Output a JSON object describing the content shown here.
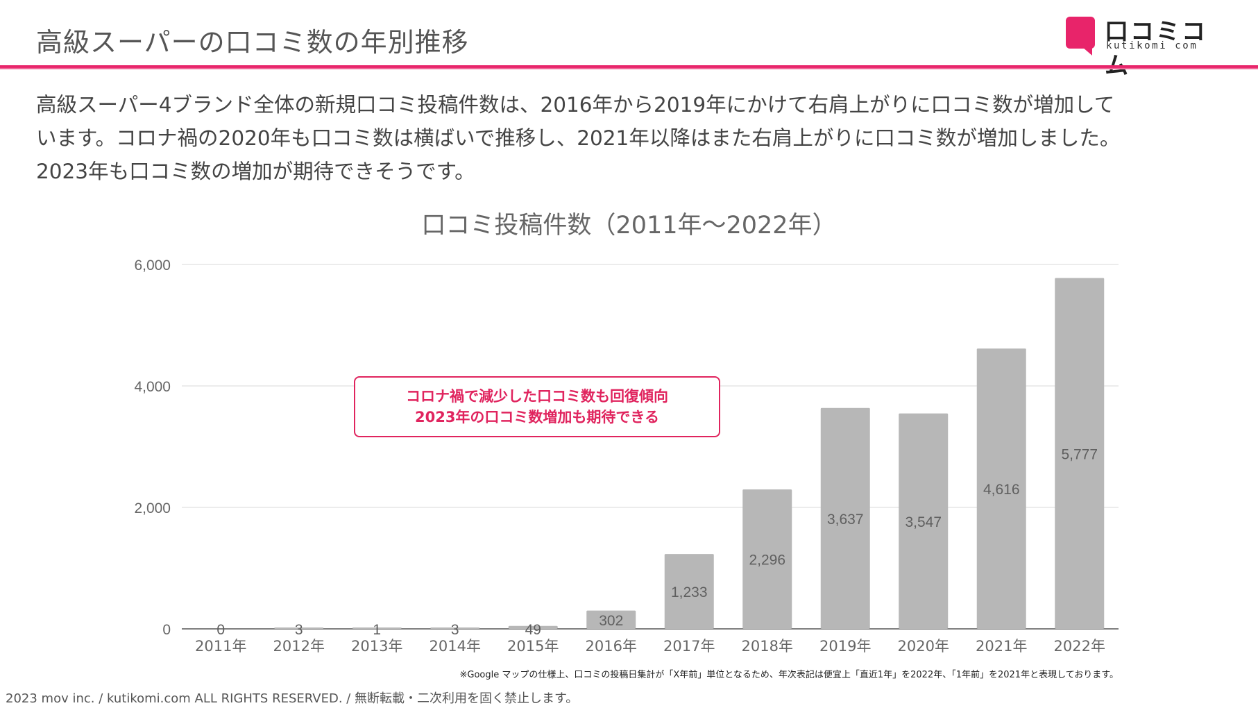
{
  "slide": {
    "title": "高級スーパーの口コミ数の年別推移",
    "body_lines": [
      "高級スーパー4ブランド全体の新規口コミ投稿件数は、2016年から2019年にかけて右肩上がりに口コミ数が増加して",
      "います。コロナ禍の2020年も口コミ数は横ばいで推移し、2021年以降はまた右肩上がりに口コミ数が増加しました。",
      "2023年も口コミ数の増加が期待できそうです。"
    ]
  },
  "logo": {
    "jp": "口コミコム",
    "en": "kutikomi com"
  },
  "callout": {
    "line1": "コロナ禍で減少した口コミ数も回復傾向",
    "line2": "2023年の口コミ数増加も期待できる"
  },
  "note": "※Google マップの仕様上、口コミの投稿日集計が「X年前」単位となるため、年次表記は便宜上「直近1年」を2022年、「1年前」を2021年と表現しております。",
  "copyright": "2023 mov inc. / kutikomi.com ALL RIGHTS RESERVED. / 無断転載・二次利用を固く禁止します。",
  "colors": {
    "accent": "#e8246a",
    "bar": "#b7b7b7",
    "grid": "#d9d9d9",
    "label": "#666666"
  },
  "chart_data": {
    "type": "bar",
    "title": "口コミ投稿件数（2011年～2022年）",
    "categories": [
      "2011年",
      "2012年",
      "2013年",
      "2014年",
      "2015年",
      "2016年",
      "2017年",
      "2018年",
      "2019年",
      "2020年",
      "2021年",
      "2022年"
    ],
    "values": [
      0,
      3,
      1,
      3,
      49,
      302,
      1233,
      2296,
      3637,
      3547,
      4616,
      5777
    ],
    "data_labels": [
      "0",
      "3",
      "1",
      "3",
      "49",
      "302",
      "1,233",
      "2,296",
      "3,637",
      "3,547",
      "4,616",
      "5,777"
    ],
    "yticks": [
      0,
      2000,
      4000,
      6000
    ],
    "ytick_labels": [
      "0",
      "2,000",
      "4,000",
      "6,000"
    ],
    "ylim": [
      0,
      6000
    ],
    "xlabel": "",
    "ylabel": "",
    "grid": true,
    "legend": "none"
  }
}
